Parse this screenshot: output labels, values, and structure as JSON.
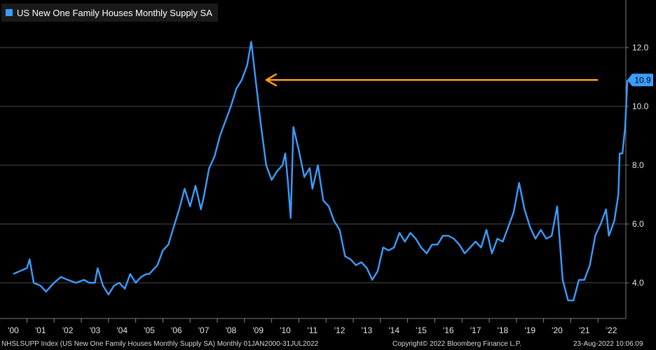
{
  "chart_data": {
    "type": "line",
    "title": "US New One Family Houses Monthly Supply SA",
    "xlabel": "",
    "ylabel": "",
    "ylim": [
      2.8,
      13.0
    ],
    "xlim": [
      2000.0,
      2022.75
    ],
    "y_ticks": [
      "4.0",
      "6.0",
      "8.0",
      "10.0",
      "12.0"
    ],
    "x_ticks": [
      "'00",
      "'01",
      "'02",
      "'03",
      "'04",
      "'05",
      "'06",
      "'07",
      "'08",
      "'09",
      "'10",
      "'11",
      "'12",
      "'13",
      "'14",
      "'15",
      "'16",
      "'17",
      "'18",
      "'19",
      "'20",
      "'21",
      "'22"
    ],
    "last_value_label": "10.9",
    "legend_position": "top-left",
    "grid": true,
    "colors": {
      "series": "#3c9cff",
      "arrow": "#ff9e1b",
      "last_value_box": "#3c9cff"
    },
    "series": [
      {
        "name": "US New One Family Houses Monthly Supply SA",
        "points": [
          [
            2000.0,
            4.3
          ],
          [
            2000.25,
            4.4
          ],
          [
            2000.5,
            4.5
          ],
          [
            2000.6,
            4.8
          ],
          [
            2000.75,
            4.0
          ],
          [
            2001.0,
            3.9
          ],
          [
            2001.2,
            3.7
          ],
          [
            2001.5,
            4.0
          ],
          [
            2001.75,
            4.2
          ],
          [
            2002.0,
            4.1
          ],
          [
            2002.3,
            4.0
          ],
          [
            2002.6,
            4.1
          ],
          [
            2002.8,
            4.0
          ],
          [
            2003.0,
            4.0
          ],
          [
            2003.1,
            4.5
          ],
          [
            2003.3,
            3.9
          ],
          [
            2003.5,
            3.6
          ],
          [
            2003.7,
            3.9
          ],
          [
            2003.9,
            4.0
          ],
          [
            2004.1,
            3.8
          ],
          [
            2004.3,
            4.3
          ],
          [
            2004.5,
            4.0
          ],
          [
            2004.7,
            4.2
          ],
          [
            2004.9,
            4.3
          ],
          [
            2005.0,
            4.3
          ],
          [
            2005.3,
            4.6
          ],
          [
            2005.5,
            5.1
          ],
          [
            2005.7,
            5.3
          ],
          [
            2005.9,
            5.9
          ],
          [
            2006.1,
            6.5
          ],
          [
            2006.3,
            7.2
          ],
          [
            2006.5,
            6.6
          ],
          [
            2006.7,
            7.3
          ],
          [
            2006.9,
            6.5
          ],
          [
            2007.0,
            6.9
          ],
          [
            2007.2,
            7.9
          ],
          [
            2007.4,
            8.3
          ],
          [
            2007.6,
            9.0
          ],
          [
            2007.8,
            9.5
          ],
          [
            2008.0,
            10.0
          ],
          [
            2008.2,
            10.6
          ],
          [
            2008.4,
            10.9
          ],
          [
            2008.6,
            11.4
          ],
          [
            2008.75,
            12.2
          ],
          [
            2008.9,
            11.0
          ],
          [
            2009.1,
            9.4
          ],
          [
            2009.3,
            8.0
          ],
          [
            2009.5,
            7.5
          ],
          [
            2009.7,
            7.8
          ],
          [
            2009.9,
            8.0
          ],
          [
            2010.0,
            8.4
          ],
          [
            2010.1,
            7.4
          ],
          [
            2010.2,
            6.2
          ],
          [
            2010.3,
            9.3
          ],
          [
            2010.5,
            8.5
          ],
          [
            2010.7,
            7.6
          ],
          [
            2010.9,
            7.9
          ],
          [
            2011.0,
            7.2
          ],
          [
            2011.2,
            8.0
          ],
          [
            2011.4,
            6.8
          ],
          [
            2011.6,
            6.6
          ],
          [
            2011.8,
            6.1
          ],
          [
            2012.0,
            5.8
          ],
          [
            2012.2,
            4.9
          ],
          [
            2012.4,
            4.8
          ],
          [
            2012.6,
            4.6
          ],
          [
            2012.8,
            4.7
          ],
          [
            2013.0,
            4.5
          ],
          [
            2013.2,
            4.1
          ],
          [
            2013.4,
            4.4
          ],
          [
            2013.6,
            5.2
          ],
          [
            2013.8,
            5.1
          ],
          [
            2014.0,
            5.2
          ],
          [
            2014.2,
            5.7
          ],
          [
            2014.4,
            5.4
          ],
          [
            2014.6,
            5.7
          ],
          [
            2014.8,
            5.5
          ],
          [
            2015.0,
            5.2
          ],
          [
            2015.2,
            5.0
          ],
          [
            2015.4,
            5.3
          ],
          [
            2015.6,
            5.3
          ],
          [
            2015.8,
            5.6
          ],
          [
            2016.0,
            5.6
          ],
          [
            2016.2,
            5.5
          ],
          [
            2016.4,
            5.3
          ],
          [
            2016.6,
            5.0
          ],
          [
            2016.8,
            5.2
          ],
          [
            2017.0,
            5.4
          ],
          [
            2017.2,
            5.2
          ],
          [
            2017.4,
            5.8
          ],
          [
            2017.6,
            5.0
          ],
          [
            2017.8,
            5.5
          ],
          [
            2018.0,
            5.4
          ],
          [
            2018.2,
            5.9
          ],
          [
            2018.4,
            6.4
          ],
          [
            2018.6,
            7.4
          ],
          [
            2018.8,
            6.5
          ],
          [
            2019.0,
            5.9
          ],
          [
            2019.2,
            5.5
          ],
          [
            2019.4,
            5.8
          ],
          [
            2019.6,
            5.5
          ],
          [
            2019.8,
            5.6
          ],
          [
            2020.0,
            6.6
          ],
          [
            2020.2,
            4.1
          ],
          [
            2020.4,
            3.4
          ],
          [
            2020.6,
            3.4
          ],
          [
            2020.8,
            4.1
          ],
          [
            2021.0,
            4.1
          ],
          [
            2021.2,
            4.6
          ],
          [
            2021.4,
            5.6
          ],
          [
            2021.6,
            6.0
          ],
          [
            2021.8,
            6.5
          ],
          [
            2021.9,
            5.6
          ],
          [
            2022.1,
            6.1
          ],
          [
            2022.25,
            7.0
          ],
          [
            2022.3,
            8.4
          ],
          [
            2022.4,
            8.4
          ],
          [
            2022.5,
            9.3
          ],
          [
            2022.583,
            10.9
          ]
        ]
      }
    ]
  },
  "footer": {
    "ticker": "NHSLSUPP Index (US New One Family Houses Monthly Supply SA)  Monthly 01JAN2000-31JUL2022",
    "copyright": "Copyright© 2022 Bloomberg Finance L.P.",
    "timestamp": "23-Aug-2022 10:06:09"
  }
}
